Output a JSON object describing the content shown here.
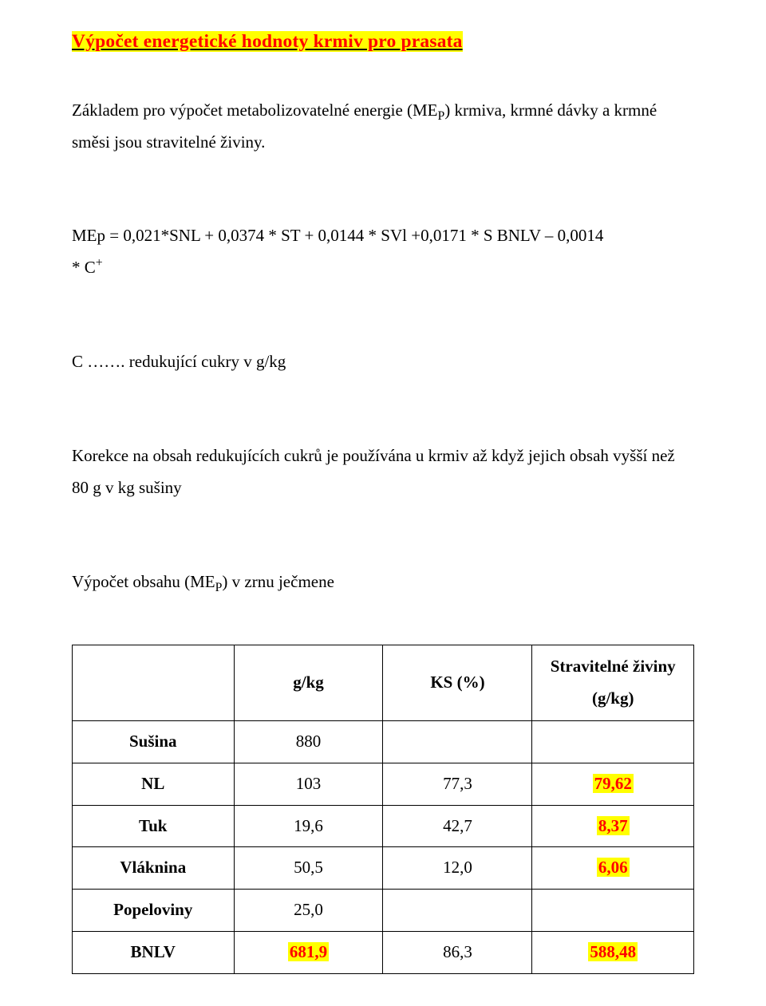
{
  "title": "Výpočet energetické hodnoty krmiv pro prasata",
  "intro": {
    "part1": "Základem pro výpočet metabolizovatelné energie (ME",
    "sub": "P",
    "part2": ") krmiva, krmné dávky a krmné směsi jsou stravitelné živiny."
  },
  "formula": {
    "line1": "MEp = 0,021*SNL + 0,0374 * ST + 0,0144 * SVl +0,0171 * S BNLV – 0,0014",
    "line2_pre": "* C",
    "line2_sup": "+"
  },
  "cdef": "C ……. redukující cukry v g/kg",
  "korekce": "Korekce na obsah redukujících cukrů je používána u krmiv až když jejich obsah vyšší než 80 g v kg sušiny",
  "calc": {
    "part1": "Výpočet obsahu (ME",
    "sub": "P",
    "part2": ") v zrnu ječmene"
  },
  "table": {
    "headers": {
      "c1": "",
      "c2": "g/kg",
      "c3": "KS (%)",
      "c4_line1": "Stravitelné živiny",
      "c4_line2": "(g/kg)"
    },
    "rows": [
      {
        "label": "Sušina",
        "gkg": "880",
        "ks": "",
        "sz": "",
        "hl_gkg": false,
        "hl_sz": false
      },
      {
        "label": "NL",
        "gkg": "103",
        "ks": "77,3",
        "sz": "79,62",
        "hl_gkg": false,
        "hl_sz": true
      },
      {
        "label": "Tuk",
        "gkg": "19,6",
        "ks": "42,7",
        "sz": "8,37",
        "hl_gkg": false,
        "hl_sz": true
      },
      {
        "label": "Vláknina",
        "gkg": "50,5",
        "ks": "12,0",
        "sz": "6,06",
        "hl_gkg": false,
        "hl_sz": true
      },
      {
        "label": "Popeloviny",
        "gkg": "25,0",
        "ks": "",
        "sz": "",
        "hl_gkg": false,
        "hl_sz": false
      },
      {
        "label": "BNLV",
        "gkg": "681,9",
        "ks": "86,3",
        "sz": "588,48",
        "hl_gkg": true,
        "hl_sz": true
      }
    ],
    "col_widths": [
      "26%",
      "24%",
      "24%",
      "26%"
    ]
  },
  "colors": {
    "highlight_bg": "#ffff00",
    "highlight_fg": "#ff0000",
    "text": "#000000",
    "bg": "#ffffff",
    "border": "#000000"
  }
}
